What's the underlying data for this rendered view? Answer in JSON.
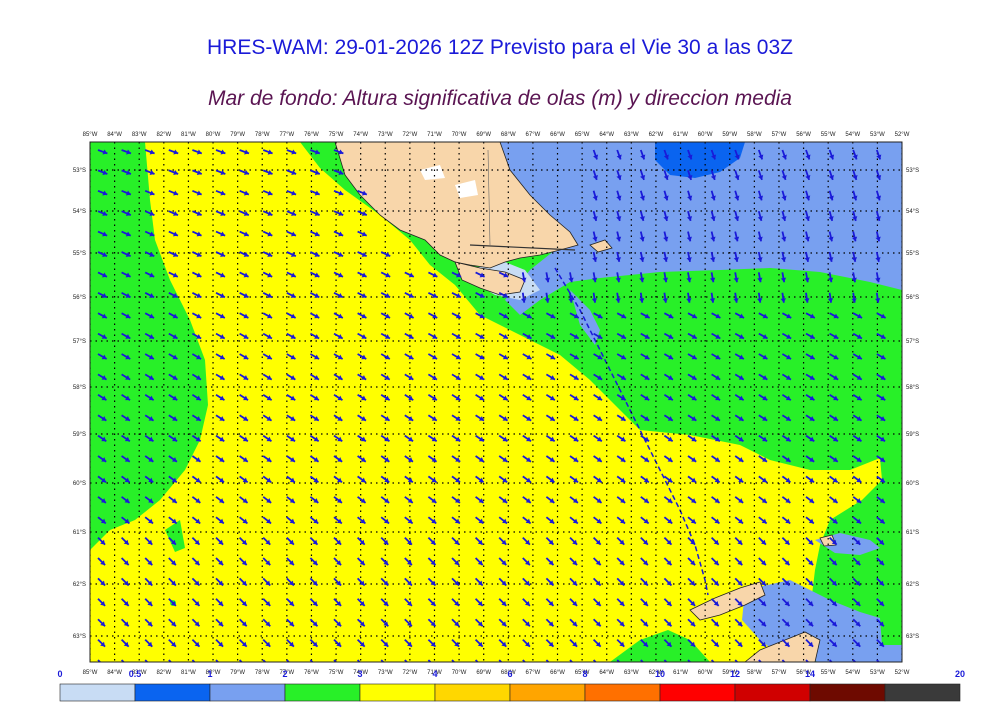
{
  "header": {
    "title": "HRES-WAM: 29-01-2026 12Z Previsto para el Vie 30 a las 03Z",
    "subtitle": "Mar de fondo: Altura significativa de olas (m) y direccion media"
  },
  "axes": {
    "lon_labels": [
      "85°W",
      "84°W",
      "83°W",
      "82°W",
      "81°W",
      "80°W",
      "79°W",
      "78°W",
      "77°W",
      "76°W",
      "75°W",
      "74°W",
      "73°W",
      "72°W",
      "71°W",
      "70°W",
      "69°W",
      "68°W",
      "67°W",
      "66°W",
      "65°W",
      "64°W",
      "63°W",
      "62°W",
      "61°W",
      "60°W",
      "59°W",
      "58°W",
      "57°W",
      "56°W",
      "55°W",
      "54°W",
      "53°W",
      "52°W"
    ],
    "lat_labels": [
      "53°S",
      "54°S",
      "55°S",
      "56°S",
      "57°S",
      "58°S",
      "59°S",
      "60°S",
      "61°S",
      "62°S",
      "63°S"
    ]
  },
  "colorbar": {
    "labels": [
      "0",
      "0.5",
      "1",
      "2",
      "3",
      "4",
      "6",
      "8",
      "10",
      "12",
      "14",
      "20"
    ],
    "colors": [
      "#c8dcf4",
      "#0a64f0",
      "#78a0f0",
      "#28f028",
      "#ffff00",
      "#ffd700",
      "#ffa500",
      "#ff7000",
      "#ff0000",
      "#d00000",
      "#6e0a00",
      "#3a3a3a"
    ]
  },
  "colors": {
    "land": "#f8d6aa",
    "swell_0_0.5": "#c8dcf4",
    "swell_0.5_1": "#0a64f0",
    "swell_1_2": "#78a0f0",
    "swell_2_3": "#28f028",
    "swell_3_4": "#ffff00",
    "arrow": "#1a1ad8"
  }
}
